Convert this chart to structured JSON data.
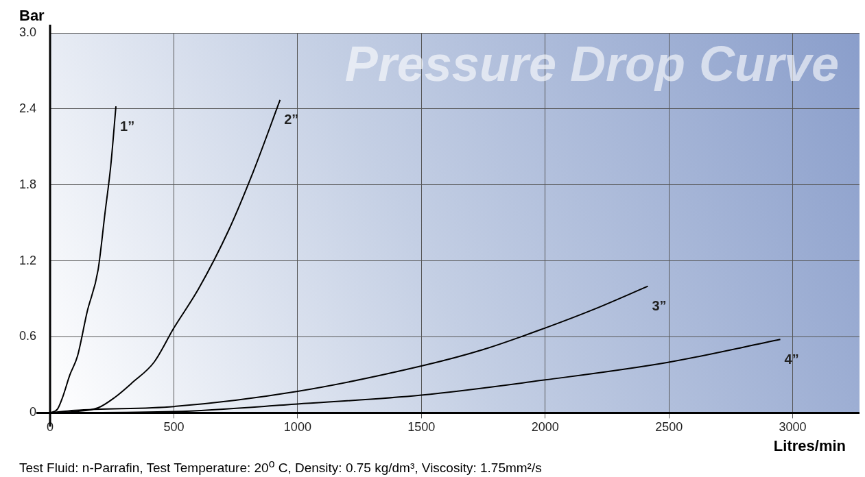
{
  "chart_data": {
    "type": "line",
    "title": "Pressure Drop Curve",
    "xlabel": "Litres/min",
    "ylabel": "Bar",
    "annotations": [
      "Test Fluid: n-Parrafin, Test Temperature: 20$^{o}$ C, Density: 0.75 kg/dm³, Viscosity: 1.75mm²/s"
    ],
    "xlim": [
      0,
      3270
    ],
    "xticks": [
      0,
      500,
      1000,
      1500,
      2000,
      2500,
      3000
    ],
    "ylim": [
      0,
      3
    ],
    "yticks": [
      0,
      0.6,
      1.2,
      1.8,
      {
        "value": 2.4,
        "label": "2.4"
      },
      {
        "value": 3,
        "label": "3.0"
      }
    ],
    "grid": true,
    "marker": "none",
    "line_style": "solid",
    "series": [
      {
        "name": "1”",
        "color": "#000000",
        "x": [
          0,
          30,
          50,
          80,
          111,
          150,
          194,
          222,
          245,
          266
        ],
        "values": [
          0,
          0.03,
          0.12,
          0.3,
          0.45,
          0.8,
          1.13,
          1.58,
          1.95,
          2.42
        ]
      },
      {
        "name": "2”",
        "color": "#000000",
        "x": [
          0,
          100,
          194,
          260,
          333,
          420,
          500,
          600,
          721,
          820,
          929
        ],
        "values": [
          0,
          0.01,
          0.04,
          0.12,
          0.24,
          0.4,
          0.67,
          0.98,
          1.44,
          1.9,
          2.47
        ]
      },
      {
        "name": "3”",
        "color": "#000000",
        "x": [
          0,
          100,
          500,
          1000,
          1500,
          1750,
          2000,
          2200,
          2415
        ],
        "values": [
          0,
          0.02,
          0.05,
          0.17,
          0.37,
          0.5,
          0.67,
          0.82,
          1.0
        ]
      },
      {
        "name": "4”",
        "color": "#000000",
        "x": [
          0,
          500,
          1000,
          1500,
          2000,
          2500,
          2950
        ],
        "values": [
          0,
          0.01,
          0.07,
          0.14,
          0.26,
          0.4,
          0.58
        ]
      }
    ]
  }
}
